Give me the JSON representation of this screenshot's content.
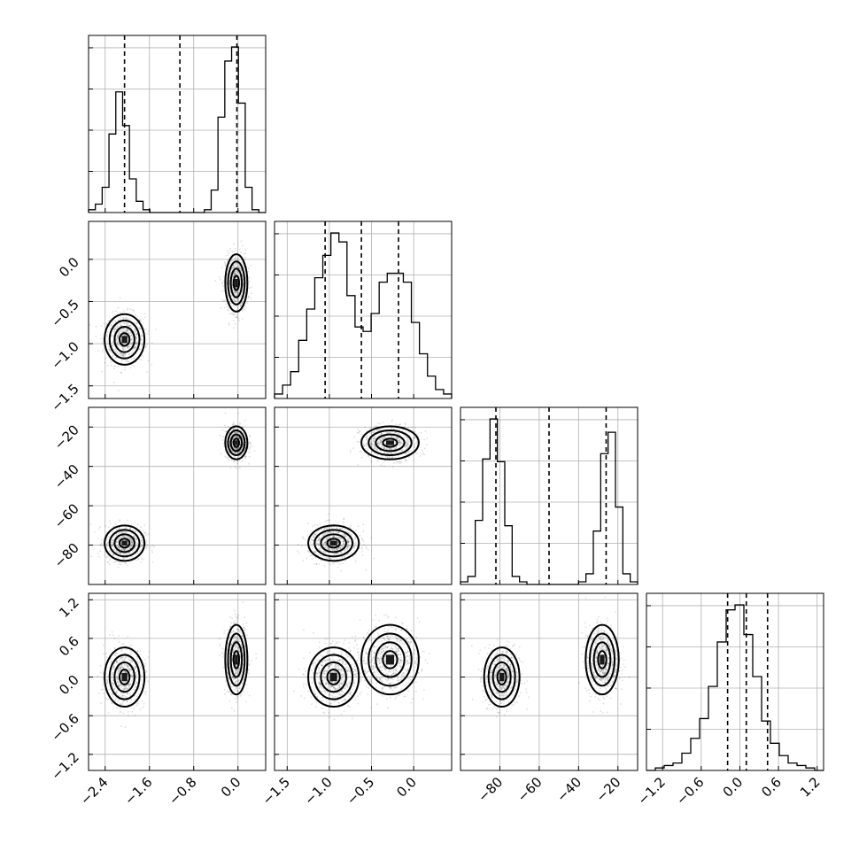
{
  "chart_data": {
    "type": "corner",
    "parameters": 4,
    "axes": [
      {
        "range": [
          -2.7,
          0.5
        ],
        "ticks": [
          "−2.4",
          "−1.6",
          "−0.8",
          "0.0"
        ],
        "tick_values": [
          -2.4,
          -1.6,
          -0.8,
          0.0
        ],
        "quantiles": [
          -2.05,
          -1.05,
          -0.02
        ]
      },
      {
        "range": [
          -1.65,
          0.45
        ],
        "ticks": [
          "−1.5",
          "−1.0",
          "−0.5",
          "0.0"
        ],
        "tick_values": [
          -1.5,
          -1.0,
          -0.5,
          0.0
        ],
        "quantiles": [
          -1.05,
          -0.62,
          -0.18
        ]
      },
      {
        "range": [
          -100,
          -10
        ],
        "ticks": [
          "−80",
          "−60",
          "−40",
          "−20"
        ],
        "tick_values": [
          -80,
          -60,
          -40,
          -20
        ],
        "quantiles": [
          -82,
          -55,
          -26
        ]
      },
      {
        "range": [
          -1.45,
          1.3
        ],
        "ticks": [
          "−1.2",
          "−0.6",
          "0.0",
          "0.6",
          "1.2"
        ],
        "tick_values": [
          -1.2,
          -0.6,
          0.0,
          0.6,
          1.2
        ],
        "quantiles": [
          -0.19,
          0.1,
          0.43
        ]
      }
    ],
    "histograms": [
      {
        "counts": [
          1,
          3,
          9,
          28,
          43,
          31,
          12,
          4,
          1,
          0,
          0,
          0,
          0,
          0,
          0,
          0,
          0,
          1,
          8,
          34,
          54,
          59,
          39,
          9,
          1,
          0
        ]
      },
      {
        "counts": [
          1,
          3,
          6,
          13,
          20,
          27,
          32,
          37,
          35,
          23,
          16,
          15,
          19,
          26,
          28,
          28,
          26,
          17,
          10,
          5,
          2,
          1
        ]
      },
      {
        "counts": [
          1,
          3,
          24,
          47,
          62,
          46,
          22,
          3,
          1,
          0,
          0,
          0,
          0,
          0,
          0,
          0,
          1,
          4,
          20,
          49,
          57,
          29,
          4,
          1
        ]
      },
      {
        "counts": [
          0,
          1,
          2,
          3,
          7,
          13,
          21,
          34,
          52,
          65,
          67,
          55,
          38,
          20,
          11,
          6,
          3,
          2,
          1,
          0
        ]
      }
    ],
    "modes": [
      {
        "weight": 0.5,
        "mean": [
          -2.05,
          -0.95,
          -79,
          0.0
        ],
        "sd": [
          0.18,
          0.15,
          4.5,
          0.23
        ]
      },
      {
        "weight": 0.5,
        "mean": [
          -0.03,
          -0.28,
          -28,
          0.27
        ],
        "sd": [
          0.1,
          0.17,
          4.2,
          0.27
        ]
      }
    ]
  }
}
